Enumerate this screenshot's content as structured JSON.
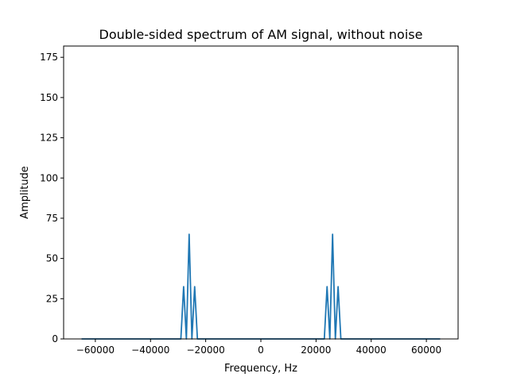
{
  "chart_data": {
    "type": "line",
    "title": "Double-sided spectrum of AM signal, without noise",
    "xlabel": "Frequency, Hz",
    "ylabel": "Amplitude",
    "xlim": [
      -71500,
      71500
    ],
    "ylim": [
      0,
      182
    ],
    "grid": false,
    "x_ticks": [
      -60000,
      -40000,
      -20000,
      0,
      20000,
      40000,
      60000
    ],
    "x_tick_labels": [
      "−60000",
      "−40000",
      "−20000",
      "0",
      "20000",
      "40000",
      "60000"
    ],
    "y_ticks": [
      0,
      25,
      50,
      75,
      100,
      125,
      150,
      175
    ],
    "y_tick_labels": [
      "0",
      "25",
      "50",
      "75",
      "100",
      "125",
      "150",
      "175"
    ],
    "series": [
      {
        "color": "#1f77b4",
        "x": [
          -65000,
          -29000,
          -28000,
          -27000,
          -26000,
          -25000,
          -24000,
          -23000,
          23000,
          24000,
          25000,
          26000,
          27000,
          28000,
          29000,
          65000
        ],
        "y": [
          0,
          0,
          32.5,
          0,
          65,
          0,
          32.5,
          0,
          0,
          32.5,
          0,
          65,
          0,
          32.5,
          0,
          0
        ]
      }
    ]
  }
}
